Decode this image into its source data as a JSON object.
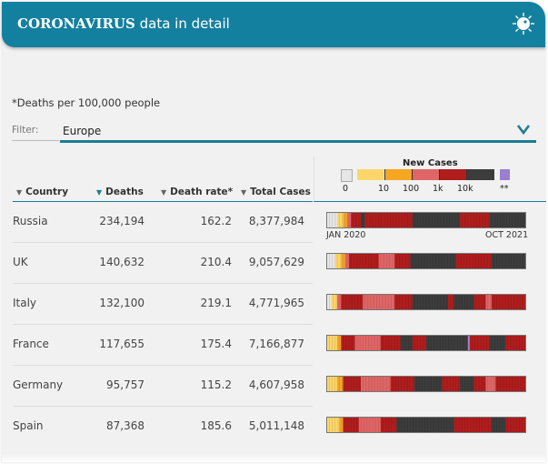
{
  "header": {
    "title_bold": "CORONAVIRUS",
    "title_rest": "data in detail",
    "icon": "virus-icon"
  },
  "footnote": "*Deaths per 100,000 people",
  "filter": {
    "label": "Filter:",
    "value": "Europe",
    "icon": "chevron-down-icon"
  },
  "columns": [
    {
      "label": "Country",
      "sorted": false
    },
    {
      "label": "Deaths",
      "sorted": true
    },
    {
      "label": "Death rate*",
      "sorted": false
    },
    {
      "label": "Total Cases",
      "sorted": false
    }
  ],
  "legend": {
    "title": "New Cases",
    "ticks": [
      "0",
      "10",
      "100",
      "1k",
      "10k",
      "**"
    ],
    "colors": {
      "zero": "#e6e6e6",
      "c1": "#fdd66b",
      "c10": "#f5a623",
      "c100": "#e06666",
      "c1k": "#b01d1d",
      "c10k": "#3c3c3c",
      "special": "#9a7fd1"
    }
  },
  "timeline": {
    "start": "JAN 2020",
    "end": "OCT 2021"
  },
  "rows": [
    {
      "country": "Russia",
      "deaths": "234,194",
      "death_rate": "162.2",
      "total_cases": "8,377,984",
      "strip": [
        [
          "zero",
          0.05
        ],
        [
          "c1",
          0.03
        ],
        [
          "c10",
          0.02
        ],
        [
          "c100",
          0.02
        ],
        [
          "c1k",
          0.05
        ],
        [
          "c10k",
          0.02
        ],
        [
          "c1k",
          0.24
        ],
        [
          "c10k",
          0.24
        ],
        [
          "c1k",
          0.15
        ],
        [
          "c10k",
          0.18
        ]
      ]
    },
    {
      "country": "UK",
      "deaths": "140,632",
      "death_rate": "210.4",
      "total_cases": "9,057,629",
      "strip": [
        [
          "zero",
          0.04
        ],
        [
          "c1",
          0.03
        ],
        [
          "c10",
          0.02
        ],
        [
          "c100",
          0.02
        ],
        [
          "c1k",
          0.15
        ],
        [
          "c100",
          0.08
        ],
        [
          "c1k",
          0.08
        ],
        [
          "c10k",
          0.23
        ],
        [
          "c1k",
          0.18
        ],
        [
          "c10k",
          0.17
        ]
      ]
    },
    {
      "country": "Italy",
      "deaths": "132,100",
      "death_rate": "219.1",
      "total_cases": "4,771,965",
      "strip": [
        [
          "zero",
          0.02
        ],
        [
          "c1",
          0.03
        ],
        [
          "c100",
          0.02
        ],
        [
          "c1k",
          0.11
        ],
        [
          "c100",
          0.16
        ],
        [
          "c1k",
          0.09
        ],
        [
          "c10k",
          0.18
        ],
        [
          "c1k",
          0.03
        ],
        [
          "c10k",
          0.1
        ],
        [
          "c1k",
          0.06
        ],
        [
          "c100",
          0.03
        ],
        [
          "c1k",
          0.17
        ]
      ]
    },
    {
      "country": "France",
      "deaths": "117,655",
      "death_rate": "175.4",
      "total_cases": "7,166,877",
      "strip": [
        [
          "c1",
          0.05
        ],
        [
          "c10",
          0.02
        ],
        [
          "c1k",
          0.07
        ],
        [
          "c100",
          0.13
        ],
        [
          "c1k",
          0.1
        ],
        [
          "c10k",
          0.06
        ],
        [
          "c1k",
          0.07
        ],
        [
          "c10k",
          0.21
        ],
        [
          "special",
          0.01
        ],
        [
          "c1k",
          0.1
        ],
        [
          "c10k",
          0.08
        ],
        [
          "c1k",
          0.1
        ]
      ]
    },
    {
      "country": "Germany",
      "deaths": "95,757",
      "death_rate": "115.2",
      "total_cases": "4,607,958",
      "strip": [
        [
          "c1",
          0.05
        ],
        [
          "c10",
          0.03
        ],
        [
          "c1k",
          0.09
        ],
        [
          "c100",
          0.15
        ],
        [
          "c1k",
          0.12
        ],
        [
          "c10k",
          0.14
        ],
        [
          "c1k",
          0.09
        ],
        [
          "c10k",
          0.07
        ],
        [
          "c1k",
          0.06
        ],
        [
          "c100",
          0.05
        ],
        [
          "c1k",
          0.15
        ]
      ]
    },
    {
      "country": "Spain",
      "deaths": "87,368",
      "death_rate": "185.6",
      "total_cases": "5,011,148",
      "strip": [
        [
          "c1",
          0.06
        ],
        [
          "c10",
          0.02
        ],
        [
          "c1k",
          0.08
        ],
        [
          "c100",
          0.11
        ],
        [
          "c1k",
          0.08
        ],
        [
          "c10k",
          0.2
        ],
        [
          "c10k",
          0.09
        ],
        [
          "c1k",
          0.19
        ],
        [
          "c10k",
          0.07
        ],
        [
          "c1k",
          0.1
        ]
      ]
    }
  ]
}
